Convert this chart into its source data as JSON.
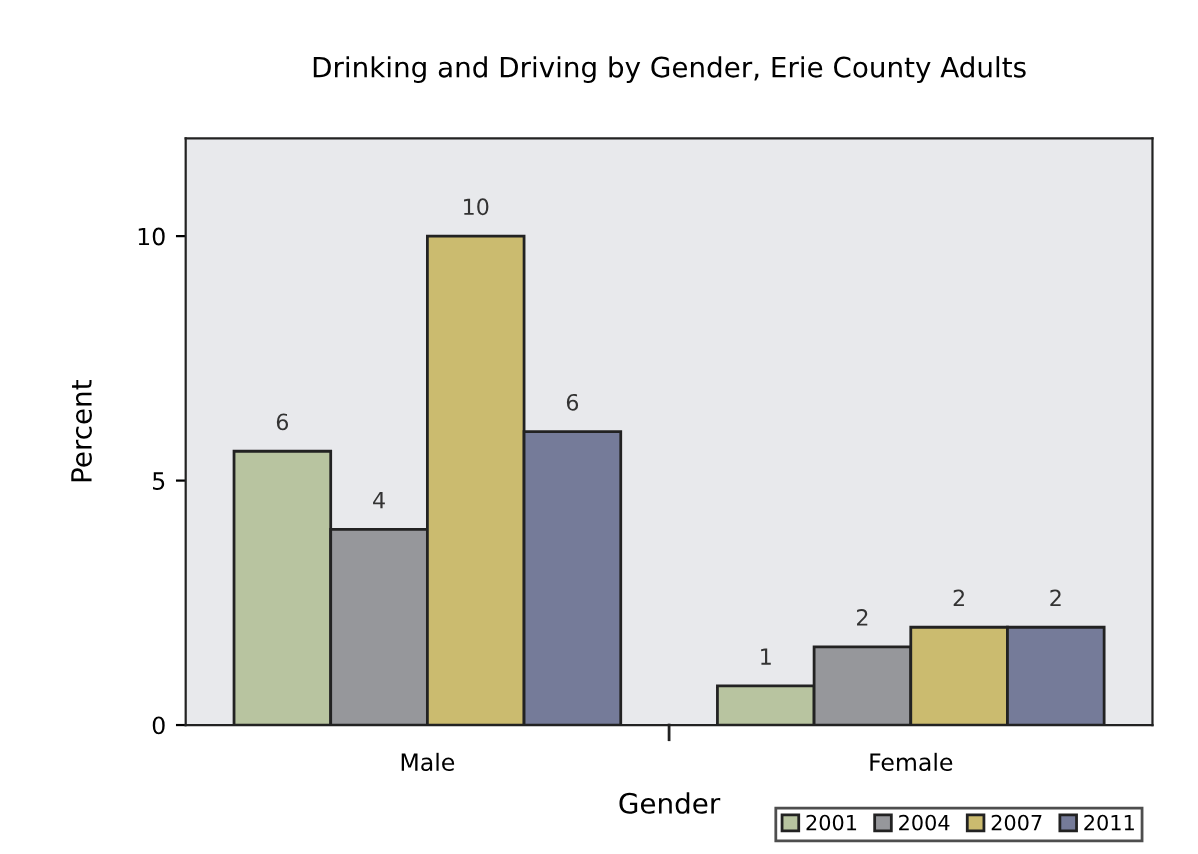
{
  "chart_data": {
    "type": "bar",
    "title": "Drinking and Driving by Gender, Erie County Adults",
    "xlabel": "Gender",
    "ylabel": "Percent",
    "categories": [
      "Male",
      "Female"
    ],
    "series": [
      {
        "name": "2001",
        "color": "#b8c4a0",
        "values": [
          5.6,
          0.8
        ],
        "value_labels": [
          "6",
          "1"
        ]
      },
      {
        "name": "2004",
        "color": "#96979b",
        "values": [
          4.0,
          1.6
        ],
        "value_labels": [
          "4",
          "2"
        ]
      },
      {
        "name": "2007",
        "color": "#cbbb6f",
        "values": [
          10.0,
          2.0
        ],
        "value_labels": [
          "10",
          "2"
        ]
      },
      {
        "name": "2011",
        "color": "#757b99",
        "values": [
          6.0,
          2.0
        ],
        "value_labels": [
          "6",
          "2"
        ]
      }
    ],
    "ylim": [
      0,
      12
    ],
    "yticks": [
      0,
      5,
      10
    ],
    "grid": false,
    "legend": "bottom right"
  }
}
